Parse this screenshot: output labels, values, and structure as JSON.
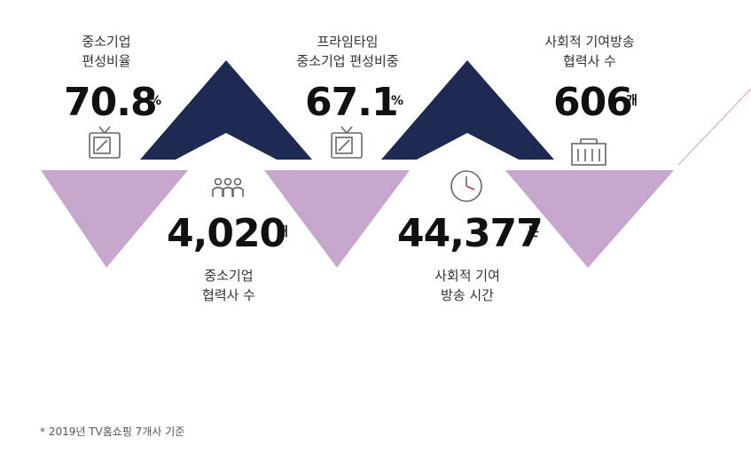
{
  "stats": [
    {
      "label": [
        "중소기업",
        "편성비율"
      ],
      "value": "70.8",
      "unit": "%"
    },
    {
      "label": [
        "프라임타임",
        "중소기업 편성비중"
      ],
      "value": "67.1",
      "unit": "%"
    },
    {
      "label": [
        "사회적 기여방송",
        "협력사 수"
      ],
      "value": "606",
      "unit": "개"
    },
    {
      "label": [
        "중소기업",
        "협력사 수"
      ],
      "value": "4,020",
      "unit": "개"
    },
    {
      "label": [
        "사회적 기여",
        "방송 시간"
      ],
      "value": "44,377",
      "unit": "분"
    }
  ],
  "footnote": "* 2019년 TV홈쇼핑 7개사 기준"
}
